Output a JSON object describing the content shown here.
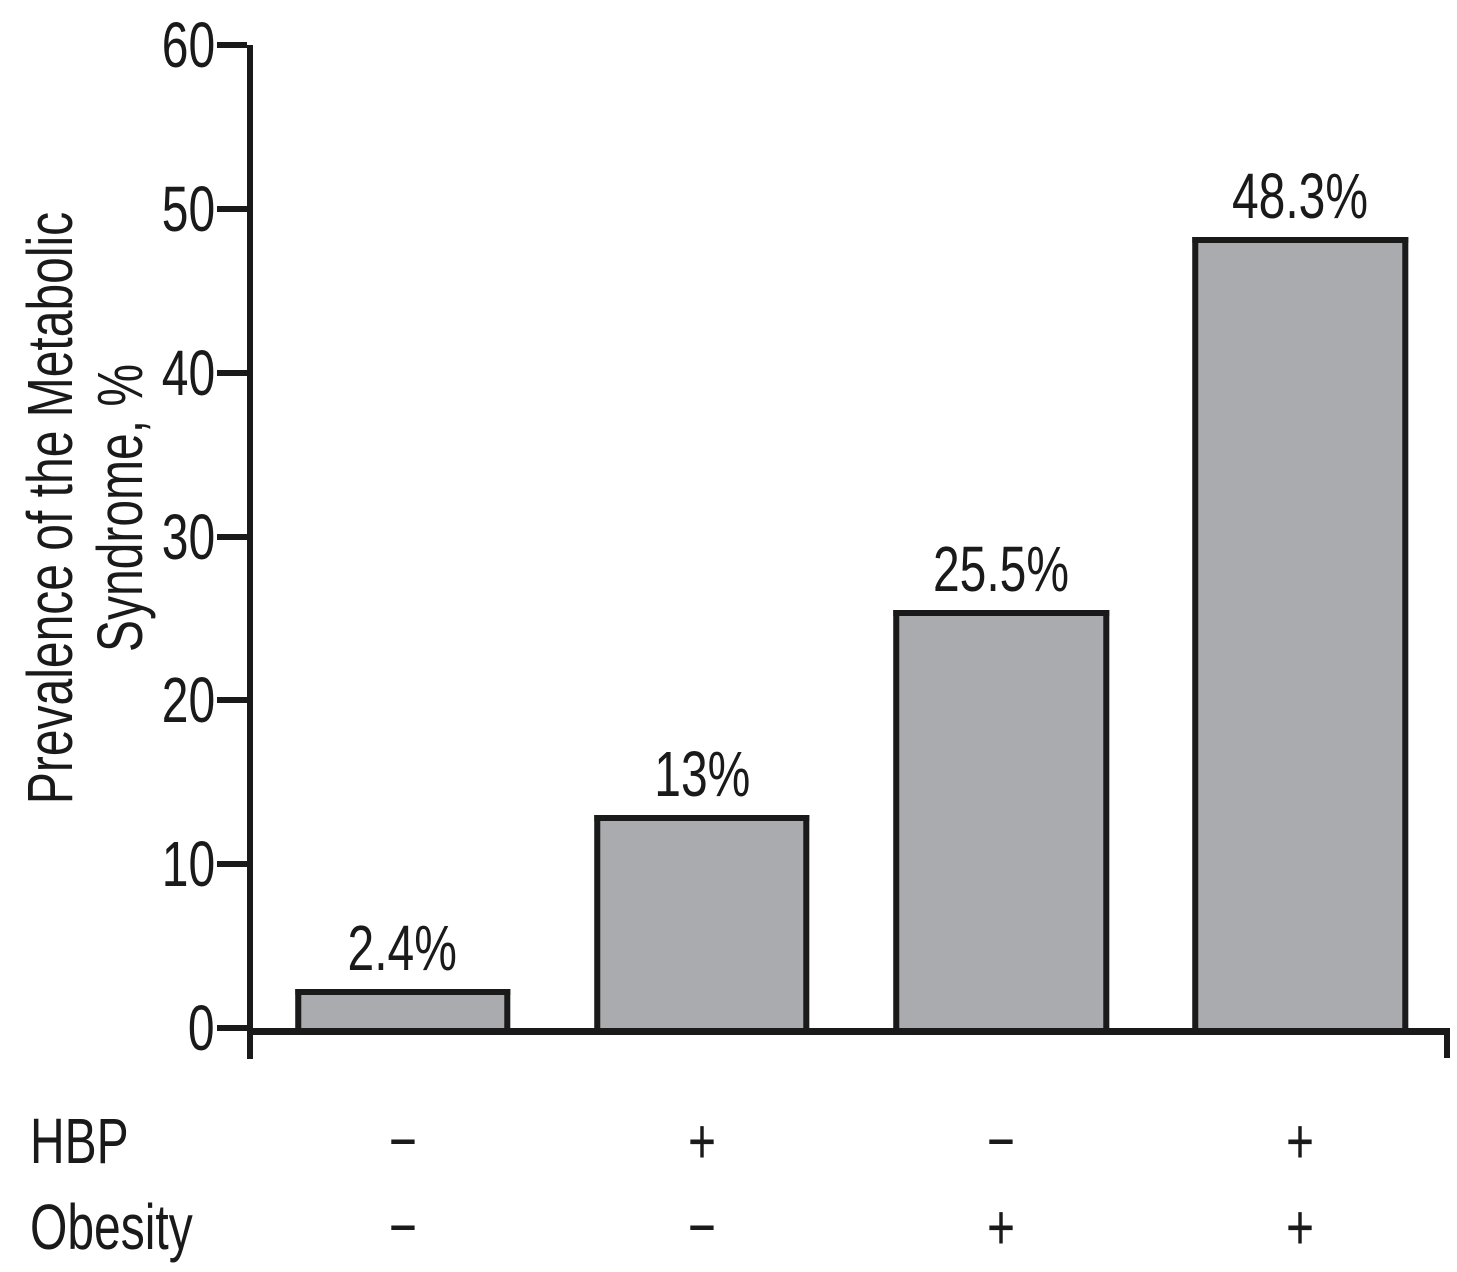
{
  "chart_data": {
    "type": "bar",
    "title": "",
    "ylabel": "Prevalence of the Metabolic Syndrome, %",
    "ylabel_line1": "Prevalence of the Metabolic",
    "ylabel_line2": "Syndrome, %",
    "ylim": [
      0,
      60
    ],
    "yticks": [
      0,
      10,
      20,
      30,
      40,
      50,
      60
    ],
    "categories": [
      "HBP− Obesity−",
      "HBP+ Obesity−",
      "HBP− Obesity+",
      "HBP+ Obesity+"
    ],
    "values": [
      2.4,
      13,
      25.5,
      48.3
    ],
    "bar_labels": [
      "2.4%",
      "13%",
      "25.5%",
      "48.3%"
    ],
    "x_axis_rows": [
      {
        "label": "HBP",
        "signs": [
          "−",
          "+",
          "−",
          "+"
        ]
      },
      {
        "label": "Obesity",
        "signs": [
          "−",
          "−",
          "+",
          "+"
        ]
      }
    ],
    "colors": {
      "bar_fill": "#a9abae",
      "bar_border": "#1a1a1a",
      "axis": "#1a1a1a",
      "background": "#ffffff"
    },
    "grid": false,
    "legend": "none"
  }
}
